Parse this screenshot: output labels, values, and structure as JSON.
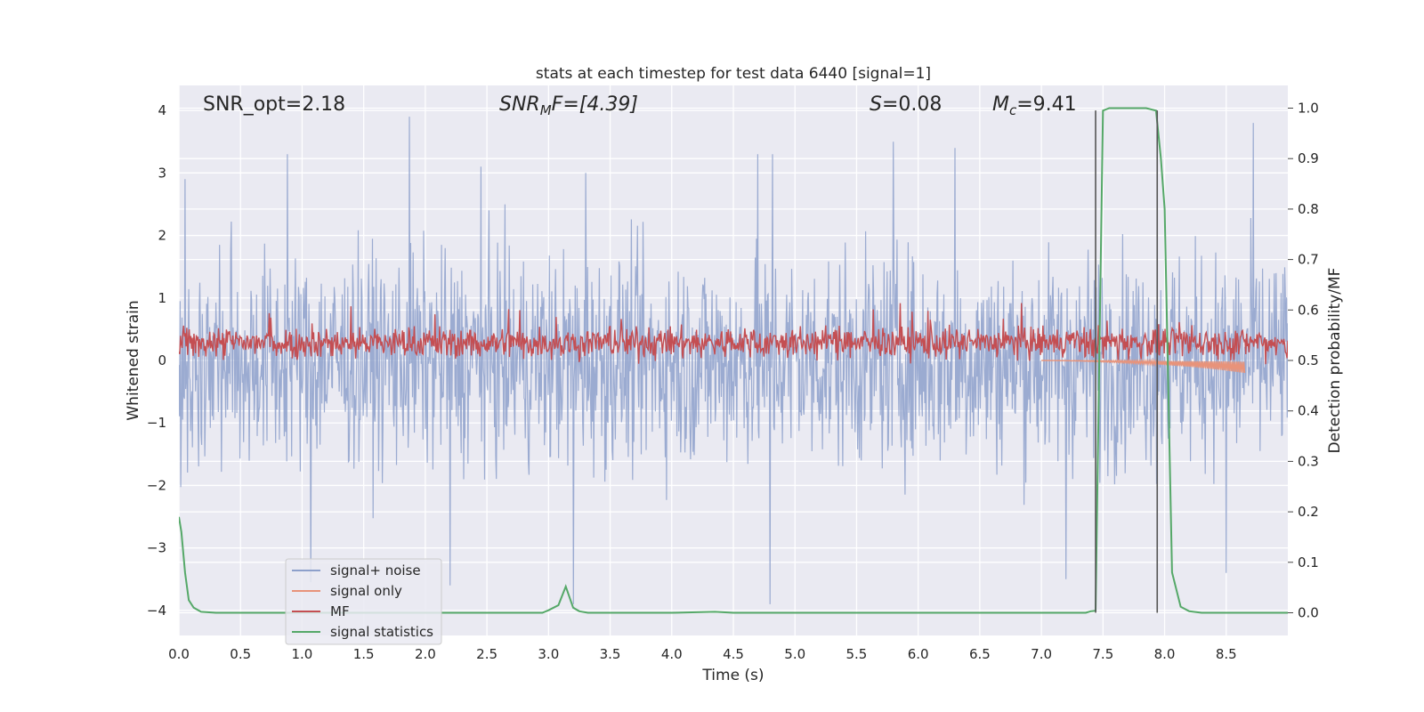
{
  "chart_data": {
    "type": "line",
    "title": "stats at each timestep for test data 6440 [signal=1]",
    "xlabel": "Time (s)",
    "ylabel": "Whitened strain",
    "ylabel_right": "Detection probability/MF",
    "xlim": [
      0.0,
      9.0
    ],
    "ylim": [
      -4.4,
      4.4
    ],
    "ylim_right": [
      -0.045,
      1.045
    ],
    "x_ticks": [
      0.0,
      0.5,
      1.0,
      1.5,
      2.0,
      2.5,
      3.0,
      3.5,
      4.0,
      4.5,
      5.0,
      5.5,
      6.0,
      6.5,
      7.0,
      7.5,
      8.0,
      8.5
    ],
    "x_tick_labels": [
      "0.0",
      "0.5",
      "1.0",
      "1.5",
      "2.0",
      "2.5",
      "3.0",
      "3.5",
      "4.0",
      "4.5",
      "5.0",
      "5.5",
      "6.0",
      "6.5",
      "7.0",
      "7.5",
      "8.0",
      "8.5"
    ],
    "y_ticks": [
      -4,
      -3,
      -2,
      -1,
      0,
      1,
      2,
      3,
      4
    ],
    "y_tick_labels": [
      "−4",
      "−3",
      "−2",
      "−1",
      "0",
      "1",
      "2",
      "3",
      "4"
    ],
    "y_right_ticks": [
      0.0,
      0.1,
      0.2,
      0.3,
      0.4,
      0.5,
      0.6,
      0.7,
      0.8,
      0.9,
      1.0
    ],
    "y_right_tick_labels": [
      "0.0",
      "0.1",
      "0.2",
      "0.3",
      "0.4",
      "0.5",
      "0.6",
      "0.7",
      "0.8",
      "0.9",
      "1.0"
    ],
    "grid": true,
    "legend_position": "lower-left",
    "annotations": [
      {
        "id": "snr-opt",
        "text": "SNR_opt=2.18",
        "x": 0.2,
        "y": 4.1
      },
      {
        "id": "snr-mf",
        "parts": [
          "SNR",
          "M",
          "F=[4.39]"
        ],
        "x": 2.6,
        "y": 4.1
      },
      {
        "id": "s-value",
        "parts": [
          "S",
          "=0.08"
        ],
        "x": 5.6,
        "y": 4.1
      },
      {
        "id": "mc-value",
        "parts": [
          "M",
          "c",
          "=9.41"
        ],
        "x": 6.6,
        "y": 4.1
      }
    ],
    "vertical_lines": [
      {
        "x": 7.44,
        "y_range": [
          -4.0,
          4.0
        ]
      },
      {
        "x": 7.94,
        "y_range": [
          -4.0,
          4.0
        ]
      }
    ],
    "series": [
      {
        "name": "signal+ noise",
        "axis": "left",
        "color": "#8da0cb",
        "style": "dense noise, roughly within ±2.5 with peaks to ±4",
        "peaks": [
          [
            0.05,
            2.9
          ],
          [
            0.88,
            3.3
          ],
          [
            1.87,
            4.0
          ],
          [
            2.45,
            3.1
          ],
          [
            3.3,
            3.0
          ],
          [
            4.7,
            3.3
          ],
          [
            4.82,
            3.3
          ],
          [
            5.8,
            3.5
          ],
          [
            6.3,
            3.4
          ],
          [
            8.72,
            3.8
          ],
          [
            1.07,
            -3.55
          ],
          [
            2.2,
            -3.6
          ],
          [
            3.2,
            -3.95
          ],
          [
            4.8,
            -3.9
          ],
          [
            7.2,
            -3.5
          ],
          [
            8.5,
            -3.4
          ]
        ]
      },
      {
        "name": "signal only",
        "axis": "left",
        "color": "#e8937a",
        "x": [
          7.0,
          7.3,
          7.6,
          7.9,
          8.2,
          8.45,
          8.65
        ],
        "y": [
          0.0,
          -0.01,
          -0.03,
          -0.06,
          -0.1,
          -0.15,
          -0.2
        ]
      },
      {
        "name": "MF",
        "axis": "right",
        "color": "#c44e52",
        "style": "noisy band around 0.53",
        "band": [
          0.5,
          0.57
        ]
      },
      {
        "name": "signal statistics",
        "axis": "right",
        "color": "#55a868",
        "x": [
          0.0,
          0.02,
          0.05,
          0.08,
          0.12,
          0.18,
          0.3,
          0.6,
          1.0,
          2.0,
          2.5,
          2.95,
          3.0,
          3.08,
          3.14,
          3.2,
          3.25,
          3.32,
          3.5,
          4.0,
          4.35,
          4.5,
          5.0,
          6.0,
          7.0,
          7.36,
          7.4,
          7.44,
          7.5,
          7.55,
          7.6,
          7.7,
          7.85,
          7.93,
          7.97,
          8.0,
          8.06,
          8.13,
          8.2,
          8.3,
          8.5,
          8.7,
          9.0
        ],
        "y": [
          0.19,
          0.16,
          0.08,
          0.025,
          0.01,
          0.002,
          0.0,
          0.0,
          0.0,
          0.0,
          0.0,
          0.0,
          0.005,
          0.015,
          0.052,
          0.01,
          0.003,
          0.0,
          0.0,
          0.0,
          0.002,
          0.0,
          0.0,
          0.0,
          0.0,
          0.0,
          0.003,
          0.004,
          0.995,
          1.0,
          1.0,
          1.0,
          1.0,
          0.995,
          0.9,
          0.8,
          0.08,
          0.012,
          0.003,
          0.0,
          0.0,
          0.0,
          0.0
        ]
      }
    ]
  }
}
